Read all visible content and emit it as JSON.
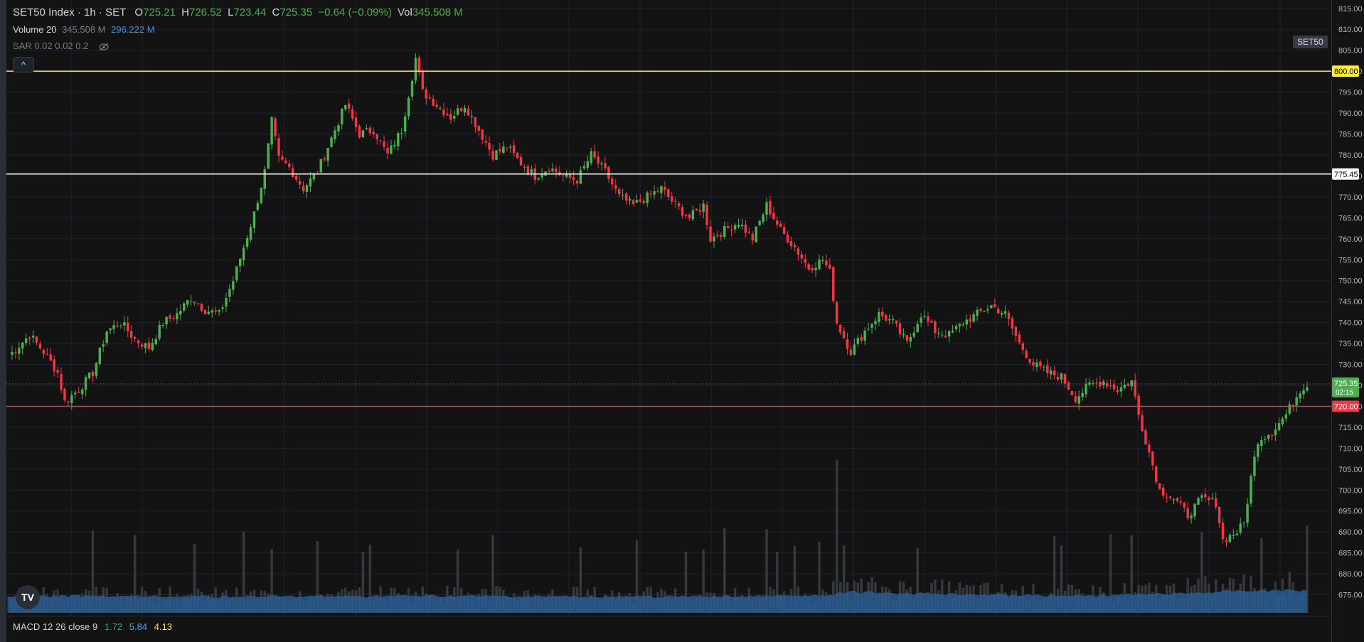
{
  "header": {
    "symbol": "SET50 Index · 1h · SET",
    "open_label": "O",
    "open": "725.21",
    "high_label": "H",
    "high": "726.52",
    "low_label": "L",
    "low": "723.44",
    "close_label": "C",
    "close": "725.35",
    "change": "−0.64 (−0.09%)",
    "vol_label": "Vol",
    "vol": "345.508 M"
  },
  "volume_legend": {
    "name": "Volume 20",
    "value1": "345.508 M",
    "value2": "296.222 M"
  },
  "sar_legend": {
    "name": "SAR 0.02 0.02 0.2"
  },
  "collapse_label": "^",
  "symbol_badge": "SET50",
  "macd_legend": {
    "name": "MACD 12 26 close 9",
    "v1": "1.72",
    "v2": "5.84",
    "v3": "4.13"
  },
  "logo_text": "TV",
  "colors": {
    "up": "#4caf50",
    "down": "#f23645",
    "bg": "#131313",
    "grid": "#1f2330",
    "yellow": "#ffeb3b",
    "white": "#ffffff",
    "red": "#f23645",
    "volume": "#2a5c8f"
  },
  "chart_data": {
    "type": "candlestick",
    "ylim": [
      670,
      817
    ],
    "yticks": [
      675,
      680,
      685,
      690,
      695,
      700,
      705,
      710,
      715,
      720,
      725,
      730,
      735,
      740,
      745,
      750,
      755,
      760,
      765,
      770,
      775,
      780,
      785,
      790,
      795,
      800,
      805,
      810,
      815
    ],
    "price_line_labels": [
      {
        "value": 800.0,
        "label": "800.00",
        "color": "#ffeb3b",
        "text_color": "#000000"
      },
      {
        "value": 775.45,
        "label": "775.45",
        "color": "#ffffff",
        "text_color": "#000000"
      },
      {
        "value": 720.0,
        "label": "720.00",
        "color": "#f23645",
        "text_color": "#ffffff"
      }
    ],
    "last_price": {
      "value": 725.35,
      "label": "725.35",
      "countdown": "02:15"
    },
    "anchors": [
      [
        0,
        732
      ],
      [
        6,
        737
      ],
      [
        10,
        733
      ],
      [
        14,
        728
      ],
      [
        16,
        721
      ],
      [
        20,
        724
      ],
      [
        24,
        728
      ],
      [
        28,
        738
      ],
      [
        32,
        740
      ],
      [
        36,
        736
      ],
      [
        40,
        734
      ],
      [
        44,
        740
      ],
      [
        48,
        742
      ],
      [
        52,
        746
      ],
      [
        56,
        743
      ],
      [
        60,
        742
      ],
      [
        64,
        750
      ],
      [
        67,
        758
      ],
      [
        70,
        766
      ],
      [
        73,
        776
      ],
      [
        75,
        788
      ],
      [
        77,
        779
      ],
      [
        80,
        777
      ],
      [
        84,
        772
      ],
      [
        88,
        776
      ],
      [
        92,
        784
      ],
      [
        96,
        792
      ],
      [
        100,
        785
      ],
      [
        104,
        786
      ],
      [
        108,
        780
      ],
      [
        112,
        786
      ],
      [
        116,
        803
      ],
      [
        118,
        795
      ],
      [
        122,
        792
      ],
      [
        126,
        789
      ],
      [
        130,
        792
      ],
      [
        134,
        786
      ],
      [
        138,
        780
      ],
      [
        142,
        782
      ],
      [
        146,
        778
      ],
      [
        150,
        775
      ],
      [
        154,
        777
      ],
      [
        158,
        775
      ],
      [
        162,
        774
      ],
      [
        166,
        780
      ],
      [
        170,
        776
      ],
      [
        174,
        770
      ],
      [
        178,
        768
      ],
      [
        182,
        770
      ],
      [
        186,
        772
      ],
      [
        190,
        768
      ],
      [
        194,
        765
      ],
      [
        198,
        768
      ],
      [
        200,
        760
      ],
      [
        204,
        762
      ],
      [
        208,
        764
      ],
      [
        212,
        760
      ],
      [
        216,
        768
      ],
      [
        220,
        762
      ],
      [
        224,
        758
      ],
      [
        228,
        753
      ],
      [
        232,
        755
      ],
      [
        234,
        752
      ],
      [
        236,
        740
      ],
      [
        240,
        733
      ],
      [
        244,
        738
      ],
      [
        248,
        742
      ],
      [
        252,
        740
      ],
      [
        256,
        735
      ],
      [
        260,
        742
      ],
      [
        264,
        738
      ],
      [
        268,
        737
      ],
      [
        272,
        740
      ],
      [
        276,
        742
      ],
      [
        280,
        744
      ],
      [
        284,
        742
      ],
      [
        288,
        735
      ],
      [
        292,
        730
      ],
      [
        296,
        728
      ],
      [
        300,
        727
      ],
      [
        304,
        722
      ],
      [
        308,
        725
      ],
      [
        312,
        726
      ],
      [
        316,
        724
      ],
      [
        320,
        726
      ],
      [
        322,
        718
      ],
      [
        324,
        712
      ],
      [
        328,
        700
      ],
      [
        332,
        698
      ],
      [
        336,
        694
      ],
      [
        340,
        698
      ],
      [
        344,
        697
      ],
      [
        346,
        688
      ],
      [
        350,
        690
      ],
      [
        352,
        692
      ],
      [
        354,
        703
      ],
      [
        356,
        712
      ],
      [
        360,
        714
      ],
      [
        364,
        718
      ],
      [
        368,
        724
      ],
      [
        370,
        725.35
      ]
    ],
    "volume_anchors": [
      [
        0,
        0.6
      ],
      [
        60,
        0.55
      ],
      [
        115,
        0.6
      ],
      [
        180,
        0.55
      ],
      [
        232,
        0.6
      ],
      [
        240,
        0.8
      ],
      [
        300,
        0.6
      ],
      [
        330,
        0.7
      ],
      [
        350,
        0.85
      ],
      [
        370,
        0.9
      ]
    ]
  }
}
